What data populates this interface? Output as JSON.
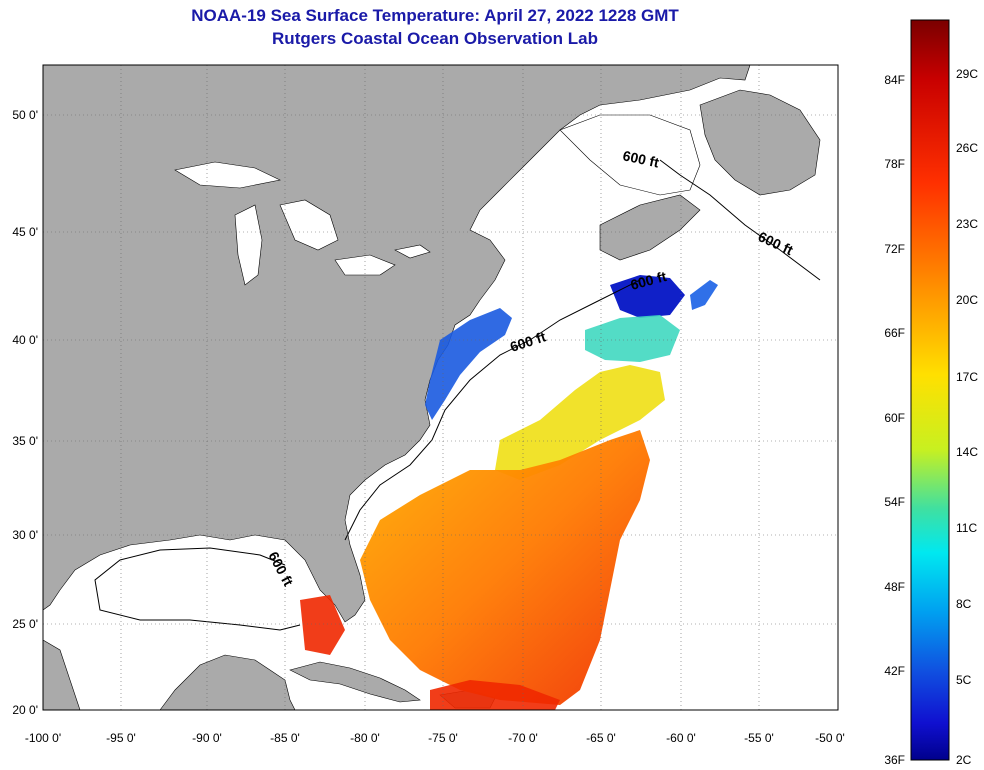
{
  "title": "NOAA-19 Sea Surface Temperature:  April 27, 2022 1228 GMT",
  "subtitle": "Rutgers Coastal Ocean Observation Lab",
  "longitude_ticks": [
    "-100 0'",
    "-95 0'",
    "-90 0'",
    "-85 0'",
    "-80 0'",
    "-75 0'",
    "-70 0'",
    "-65 0'",
    "-60 0'",
    "-55 0'",
    "-50 0'"
  ],
  "latitude_ticks": [
    "50 0'",
    "45 0'",
    "40 0'",
    "35 0'",
    "30 0'",
    "25 0'",
    "20 0'"
  ],
  "contour_label": "600 ft",
  "colorbar": {
    "fahrenheit": [
      "84F",
      "78F",
      "72F",
      "66F",
      "60F",
      "54F",
      "48F",
      "42F",
      "36F"
    ],
    "celsius": [
      "29C",
      "26C",
      "23C",
      "20C",
      "17C",
      "14C",
      "11C",
      "8C",
      "5C",
      "2C"
    ]
  },
  "colors": {
    "land": "#aaaaaa",
    "ocean_no_data": "#ffffff",
    "title": "#1a1aa8"
  }
}
